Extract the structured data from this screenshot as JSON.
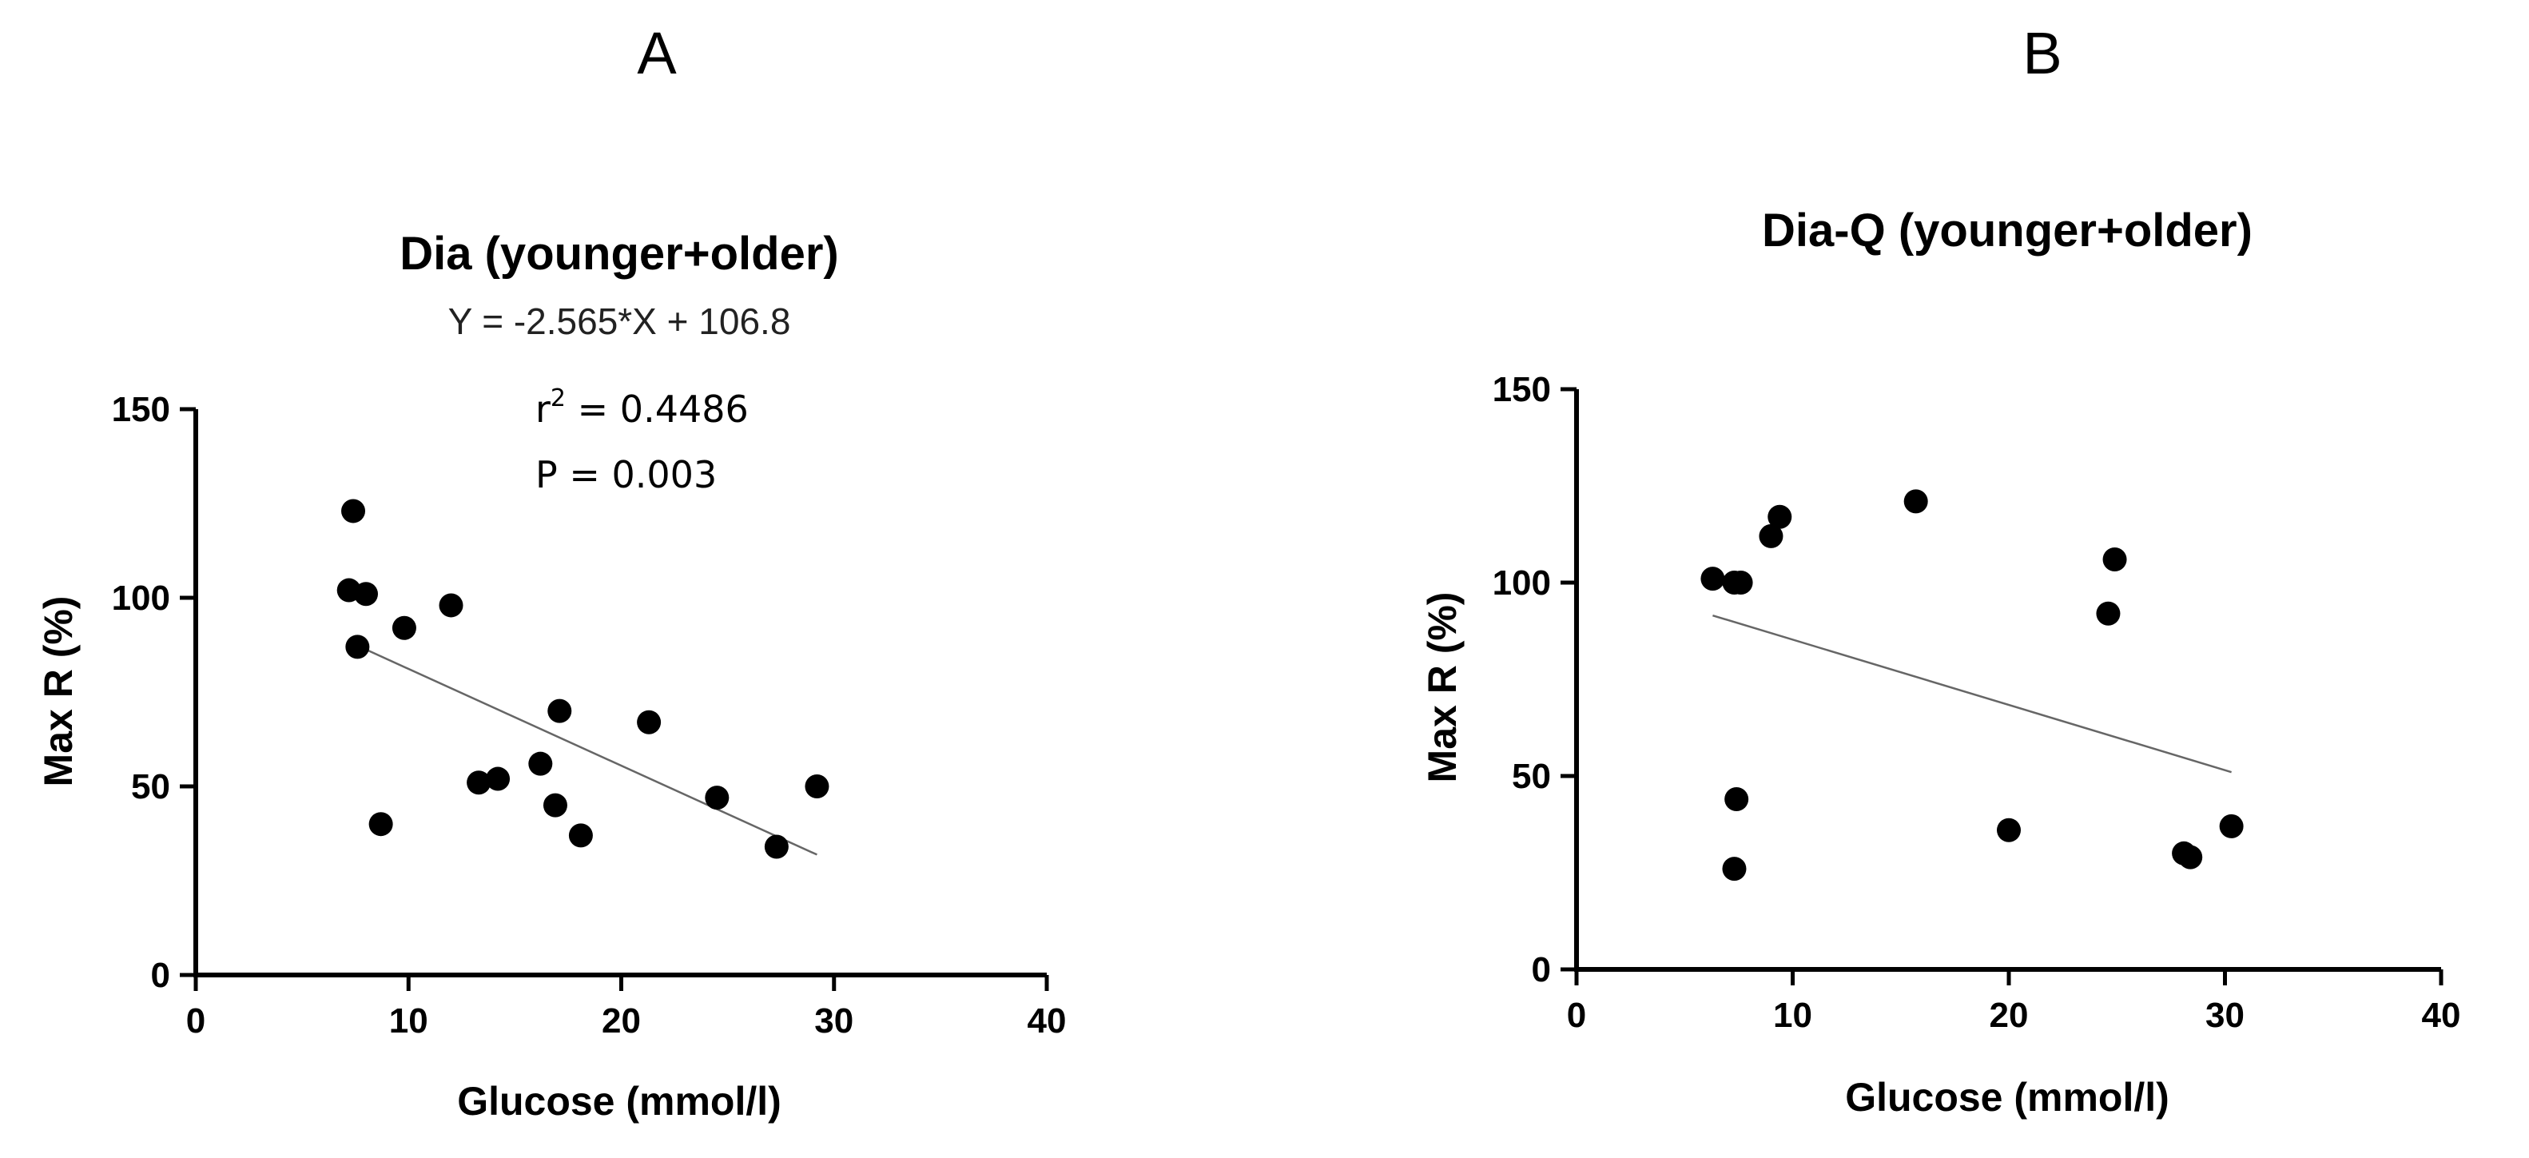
{
  "chart_data": [
    {
      "type": "scatter",
      "panel": "A",
      "title": "Dia (younger+older)",
      "equation": "Y = -2.565*X + 106.8",
      "r2_label": "r",
      "r2_sup": "2",
      "r2_value": " = 0.4486",
      "p_label": "P  = 0.003",
      "xlabel": "Glucose (mmol/l)",
      "ylabel": "Max R (%)",
      "xlim": [
        0,
        40
      ],
      "ylim": [
        0,
        150
      ],
      "xticks": [
        0,
        10,
        20,
        30,
        40
      ],
      "yticks": [
        0,
        50,
        100,
        150
      ],
      "fit": {
        "slope": -2.565,
        "intercept": 106.8,
        "x_range": [
          7.6,
          29.2
        ]
      },
      "points": [
        {
          "x": 7.4,
          "y": 123
        },
        {
          "x": 7.2,
          "y": 102
        },
        {
          "x": 8.0,
          "y": 101
        },
        {
          "x": 7.6,
          "y": 87
        },
        {
          "x": 9.8,
          "y": 92
        },
        {
          "x": 12.0,
          "y": 98
        },
        {
          "x": 8.7,
          "y": 40
        },
        {
          "x": 13.3,
          "y": 51
        },
        {
          "x": 14.2,
          "y": 52
        },
        {
          "x": 16.2,
          "y": 56
        },
        {
          "x": 17.1,
          "y": 70
        },
        {
          "x": 16.9,
          "y": 45
        },
        {
          "x": 18.1,
          "y": 37
        },
        {
          "x": 21.3,
          "y": 67
        },
        {
          "x": 24.5,
          "y": 47
        },
        {
          "x": 27.3,
          "y": 34
        },
        {
          "x": 29.2,
          "y": 50
        }
      ]
    },
    {
      "type": "scatter",
      "panel": "B",
      "title": "Dia-Q (younger+older)",
      "xlabel": "Glucose (mmol/l)",
      "ylabel": "Max R (%)",
      "xlim": [
        0,
        40
      ],
      "ylim": [
        0,
        150
      ],
      "xticks": [
        0,
        10,
        20,
        30,
        40
      ],
      "yticks": [
        0,
        50,
        100,
        150
      ],
      "fit": {
        "x_range": [
          6.3,
          30.3
        ],
        "y_range": [
          91.5,
          51
        ]
      },
      "points": [
        {
          "x": 6.3,
          "y": 101
        },
        {
          "x": 7.3,
          "y": 100
        },
        {
          "x": 7.6,
          "y": 100
        },
        {
          "x": 9.0,
          "y": 112
        },
        {
          "x": 9.4,
          "y": 117
        },
        {
          "x": 15.7,
          "y": 121
        },
        {
          "x": 24.9,
          "y": 106
        },
        {
          "x": 24.6,
          "y": 92
        },
        {
          "x": 7.4,
          "y": 44
        },
        {
          "x": 7.3,
          "y": 26
        },
        {
          "x": 20.0,
          "y": 36
        },
        {
          "x": 28.1,
          "y": 30
        },
        {
          "x": 28.4,
          "y": 29
        },
        {
          "x": 30.3,
          "y": 37
        }
      ]
    }
  ]
}
